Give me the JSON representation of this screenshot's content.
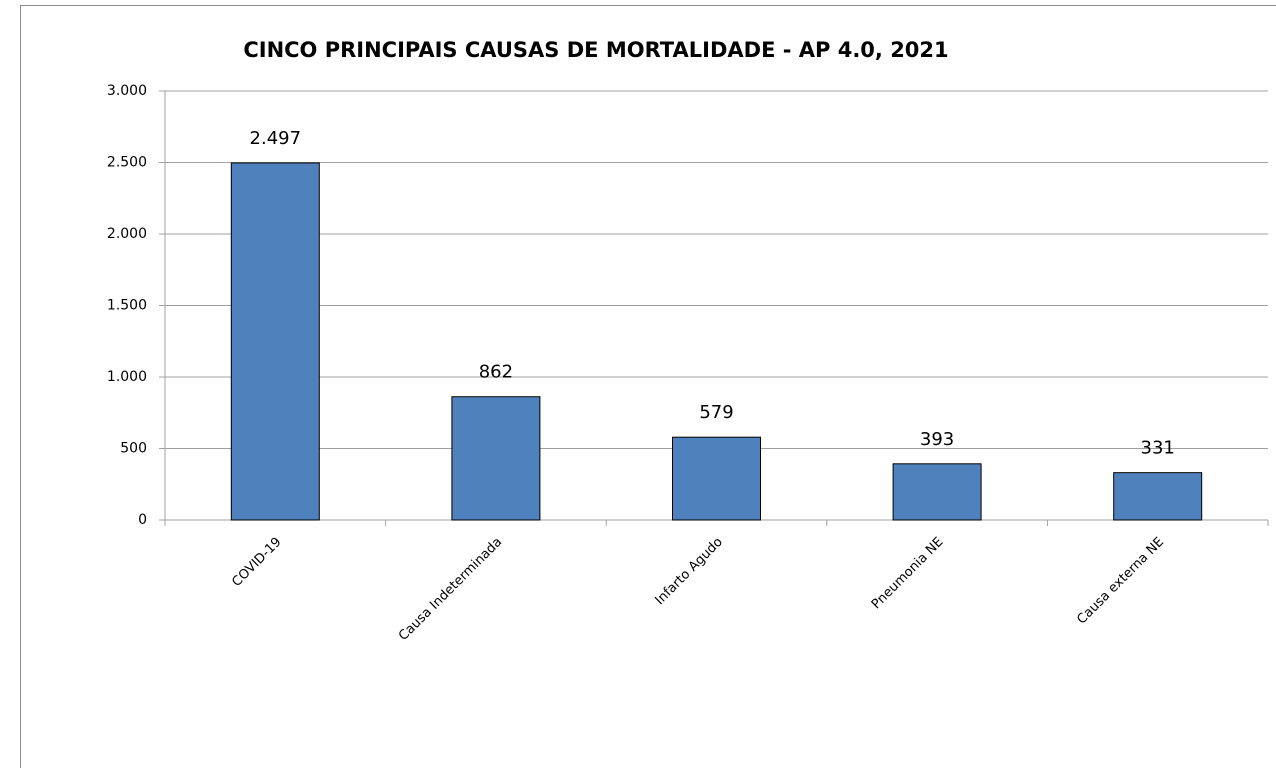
{
  "chart_data": {
    "type": "bar",
    "title": "CINCO PRINCIPAIS CAUSAS DE MORTALIDADE - AP 4.0,   2021",
    "categories": [
      "COVID-19",
      "Causa Indeterminada",
      "Infarto Agudo",
      "Pneumonia NE",
      "Causa externa NE"
    ],
    "values": [
      2497,
      862,
      579,
      393,
      331
    ],
    "value_labels": [
      "2.497",
      "862",
      "579",
      "393",
      "331"
    ],
    "color": "#4f81bd",
    "ylim": [
      0,
      3000
    ],
    "yticks": [
      0,
      500,
      {
        "value": 1000,
        "label": "1.000"
      },
      {
        "value": 1500,
        "label": "1.500"
      },
      {
        "value": 2000,
        "label": "2.000"
      },
      {
        "value": 2500,
        "label": "2.500"
      },
      {
        "value": 3000,
        "label": "3.000"
      }
    ],
    "grid": true
  }
}
